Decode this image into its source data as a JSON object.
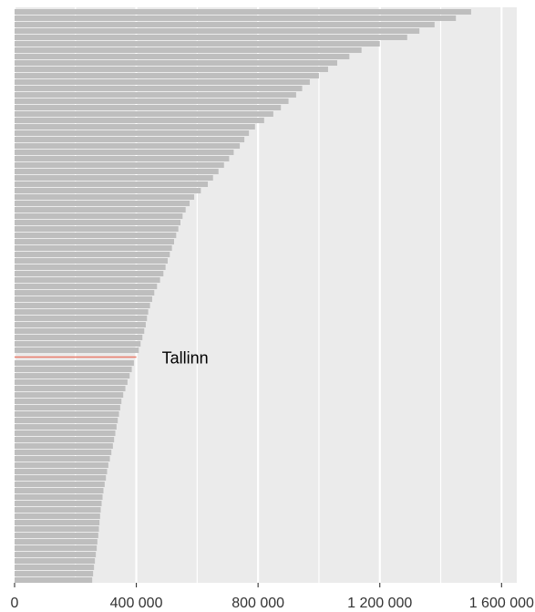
{
  "chart_data": {
    "type": "hbar",
    "categories": [
      null,
      null,
      null,
      null,
      null,
      null,
      null,
      null,
      null,
      null,
      null,
      null,
      null,
      null,
      null,
      null,
      null,
      null,
      null,
      null,
      null,
      null,
      null,
      null,
      null,
      null,
      null,
      null,
      null,
      null,
      null,
      null,
      null,
      null,
      null,
      null,
      null,
      null,
      null,
      null,
      null,
      null,
      null,
      null,
      null,
      null,
      null,
      null,
      null,
      null,
      null,
      null,
      null,
      null,
      "Tallinn",
      null,
      null,
      null,
      null,
      null,
      null,
      null,
      null,
      null,
      null,
      null,
      null,
      null,
      null,
      null,
      null,
      null,
      null,
      null,
      null,
      null,
      null,
      null,
      null,
      null,
      null,
      null,
      null,
      null,
      null,
      null,
      null,
      null,
      null,
      null
    ],
    "values": [
      1500000,
      1450000,
      1380000,
      1330000,
      1290000,
      1200000,
      1140000,
      1100000,
      1060000,
      1030000,
      1000000,
      970000,
      945000,
      925000,
      900000,
      875000,
      850000,
      820000,
      790000,
      770000,
      755000,
      740000,
      720000,
      705000,
      688000,
      670000,
      652000,
      635000,
      612000,
      590000,
      575000,
      562000,
      552000,
      545000,
      538000,
      531000,
      524000,
      517000,
      510000,
      503000,
      496000,
      489000,
      478000,
      468000,
      459000,
      452000,
      445000,
      439000,
      435000,
      431000,
      426000,
      420000,
      414000,
      408000,
      400000,
      392000,
      385000,
      378000,
      371000,
      364000,
      357000,
      351000,
      347000,
      343000,
      339000,
      335000,
      331000,
      327000,
      323000,
      318000,
      313000,
      308000,
      304000,
      300000,
      296000,
      292000,
      289000,
      286000,
      283000,
      281000,
      279000,
      277000,
      275000,
      272000,
      270000,
      267000,
      264000,
      261000,
      258000,
      255000
    ],
    "color": "#bebebe",
    "highlight_color": "#e8806f",
    "xlim": [
      0,
      1650000
    ],
    "xticks": [
      0,
      {
        "value": 400000,
        "label": "400 000"
      },
      {
        "value": 800000,
        "label": "800 000"
      },
      {
        "value": 1200000,
        "label": "1 200 000"
      },
      {
        "value": 1600000,
        "label": "1 600 000"
      }
    ],
    "xminorticks": [
      200000,
      600000,
      1000000,
      1400000
    ],
    "grid": true
  }
}
